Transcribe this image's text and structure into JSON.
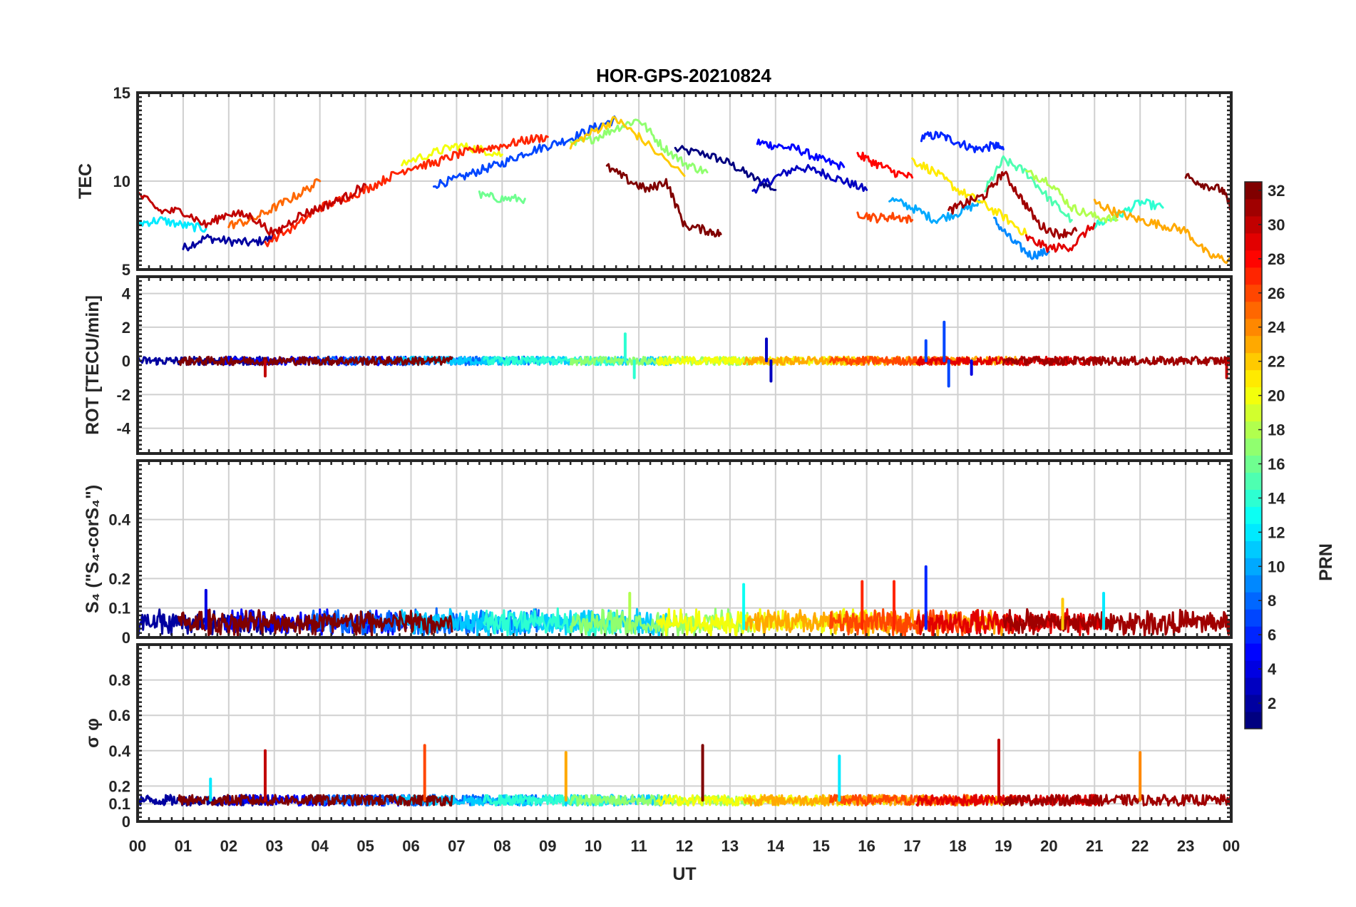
{
  "chart_data": {
    "title": "HOR-GPS-20210824",
    "type": "line",
    "xlabel": "UT",
    "x_ticks": [
      "00",
      "01",
      "02",
      "03",
      "04",
      "05",
      "06",
      "07",
      "08",
      "09",
      "10",
      "11",
      "12",
      "13",
      "14",
      "15",
      "16",
      "17",
      "18",
      "19",
      "20",
      "21",
      "22",
      "23",
      "00"
    ],
    "xlim": [
      0,
      24
    ],
    "grid": true,
    "panels": [
      {
        "ylabel": "TEC",
        "ylim": [
          5,
          15
        ],
        "y_ticks": [
          {
            "v": 5,
            "t": "5"
          },
          {
            "v": 10,
            "t": "10"
          },
          {
            "v": 15,
            "t": "15"
          }
        ],
        "description_of_series": "vertical TEC per PRN",
        "series": [
          {
            "prn": 1,
            "x": [
              11.8,
              12.5,
              13.0,
              13.5,
              14.0
            ],
            "y": [
              11.8,
              11.5,
              11.0,
              10.2,
              9.5
            ]
          },
          {
            "prn": 2,
            "x": [
              1.0,
              1.5,
              2.0,
              2.5,
              3.0
            ],
            "y": [
              6.2,
              6.8,
              6.6,
              6.5,
              6.8
            ]
          },
          {
            "prn": 3,
            "x": [
              13.5,
              14.0,
              14.5,
              15.0,
              15.5,
              16.0
            ],
            "y": [
              9.5,
              10.2,
              10.8,
              10.5,
              10.0,
              9.5
            ]
          },
          {
            "prn": 5,
            "x": [
              13.6,
              14.0,
              14.5,
              15.0,
              15.5
            ],
            "y": [
              12.2,
              12.0,
              11.8,
              11.2,
              10.8
            ]
          },
          {
            "prn": 6,
            "x": [
              17.2,
              17.6,
              18.0,
              18.4,
              18.8,
              19.0
            ],
            "y": [
              12.5,
              12.6,
              12.2,
              11.8,
              12.0,
              11.8
            ]
          },
          {
            "prn": 7,
            "x": [
              6.5,
              7.0,
              7.5,
              8.0,
              8.5,
              9.0,
              9.5,
              10.0,
              10.5
            ],
            "y": [
              9.8,
              10.1,
              10.6,
              11.0,
              11.6,
              12.0,
              12.4,
              13.0,
              13.5
            ]
          },
          {
            "prn": 9,
            "x": [
              18.8,
              19.2,
              19.6,
              20.0
            ],
            "y": [
              7.8,
              6.6,
              5.8,
              6.0
            ]
          },
          {
            "prn": 10,
            "x": [
              16.5,
              17.0,
              17.5,
              18.0,
              18.5
            ],
            "y": [
              9.0,
              8.5,
              7.8,
              8.2,
              8.8
            ]
          },
          {
            "prn": 12,
            "x": [
              0.0,
              0.5,
              1.0,
              1.5
            ],
            "y": [
              7.6,
              7.8,
              7.5,
              7.3
            ]
          },
          {
            "prn": 14,
            "x": [
              21.0,
              21.5,
              22.0,
              22.5
            ],
            "y": [
              7.5,
              8.0,
              8.8,
              8.5
            ]
          },
          {
            "prn": 15,
            "x": [
              18.6,
              19.0,
              19.5,
              20.0,
              20.5
            ],
            "y": [
              9.5,
              11.2,
              10.5,
              9.0,
              7.8
            ]
          },
          {
            "prn": 16,
            "x": [
              7.5,
              8.0,
              8.5
            ],
            "y": [
              9.2,
              9.0,
              9.0
            ]
          },
          {
            "prn": 17,
            "x": [
              9.5,
              10.0,
              10.5,
              11.0,
              11.5,
              12.0,
              12.5
            ],
            "y": [
              12.0,
              12.4,
              13.0,
              13.5,
              12.0,
              11.0,
              10.5
            ]
          },
          {
            "prn": 18,
            "x": [
              19.5,
              20.0,
              20.5,
              21.0,
              21.5
            ],
            "y": [
              10.5,
              10.0,
              8.5,
              8.0,
              7.8
            ]
          },
          {
            "prn": 20,
            "x": [
              5.8,
              6.5,
              7.0,
              7.5,
              8.0
            ],
            "y": [
              11.0,
              11.6,
              12.0,
              11.8,
              11.5
            ]
          },
          {
            "prn": 21,
            "x": [
              17.0,
              17.5,
              18.0,
              18.5,
              19.0,
              19.5
            ],
            "y": [
              11.2,
              10.5,
              9.5,
              8.8,
              8.0,
              7.0
            ]
          },
          {
            "prn": 22,
            "x": [
              9.5,
              10.0,
              10.5,
              11.0,
              12.0
            ],
            "y": [
              12.0,
              12.8,
              13.5,
              12.5,
              10.3
            ]
          },
          {
            "prn": 23,
            "x": [
              21.0,
              21.5,
              22.0,
              22.5,
              23.0,
              23.5,
              24.0
            ],
            "y": [
              8.8,
              8.2,
              7.8,
              7.5,
              7.2,
              5.8,
              5.5
            ]
          },
          {
            "prn": 25,
            "x": [
              2.0,
              2.5,
              3.0,
              3.5,
              4.0
            ],
            "y": [
              7.5,
              7.8,
              8.5,
              9.2,
              10.0
            ]
          },
          {
            "prn": 26,
            "x": [
              15.8,
              16.2,
              16.6,
              17.0
            ],
            "y": [
              8.2,
              7.9,
              8.0,
              7.8
            ]
          },
          {
            "prn": 27,
            "x": [
              2.8,
              3.5,
              4.0,
              4.5,
              5.0,
              5.5,
              6.0,
              6.5,
              7.0,
              7.5,
              8.0,
              8.5,
              9.0
            ],
            "y": [
              6.5,
              7.5,
              8.5,
              9.0,
              9.5,
              10.2,
              10.8,
              11.0,
              11.5,
              11.8,
              12.0,
              12.3,
              12.5
            ]
          },
          {
            "prn": 28,
            "x": [
              15.8,
              16.2,
              16.6,
              17.0
            ],
            "y": [
              11.5,
              11.0,
              10.5,
              10.2
            ]
          },
          {
            "prn": 29,
            "x": [
              19.5,
              20.0,
              20.5,
              21.0
            ],
            "y": [
              6.8,
              6.2,
              6.3,
              7.6
            ]
          },
          {
            "prn": 30,
            "x": [
              0.0,
              0.5,
              1.0,
              1.5,
              2.0,
              2.5,
              3.0,
              3.5,
              4.0,
              4.5,
              5.0
            ],
            "y": [
              9.3,
              8.3,
              8.3,
              7.5,
              8.2,
              8.0,
              7.0,
              8.0,
              8.5,
              9.0,
              9.8
            ]
          },
          {
            "prn": 31,
            "x": [
              17.8,
              18.2,
              18.6,
              19.0,
              19.4,
              19.8,
              20.2,
              20.6
            ],
            "y": [
              8.3,
              8.8,
              9.2,
              10.5,
              9.0,
              7.5,
              7.0,
              7.2
            ]
          },
          {
            "prn": 32,
            "x": [
              10.3,
              10.8,
              11.2,
              11.6,
              12.0,
              12.5,
              12.8
            ],
            "y": [
              10.8,
              10.0,
              9.5,
              10.0,
              7.5,
              7.2,
              7.0
            ]
          },
          {
            "prn": 32,
            "x": [
              23.0,
              23.4,
              23.8,
              24.0
            ],
            "y": [
              10.3,
              9.8,
              9.5,
              8.5
            ]
          }
        ]
      },
      {
        "ylabel": "ROT [TECU/min]",
        "ylim": [
          -5.5,
          5.0
        ],
        "y_ticks": [
          {
            "v": -4,
            "t": "-4"
          },
          {
            "v": -2,
            "t": "-2"
          },
          {
            "v": 0,
            "t": "0"
          },
          {
            "v": 2,
            "t": "2"
          },
          {
            "v": 4,
            "t": "4"
          }
        ],
        "description_of_series": "rate of TEC, mostly within ±0.5, spikes to about ±2",
        "spikes": [
          {
            "prn": 3,
            "x": 13.8,
            "y": 1.3
          },
          {
            "prn": 3,
            "x": 13.9,
            "y": -1.2
          },
          {
            "prn": 14,
            "x": 10.7,
            "y": 1.6
          },
          {
            "prn": 14,
            "x": 10.9,
            "y": -1.0
          },
          {
            "prn": 7,
            "x": 17.3,
            "y": 1.2
          },
          {
            "prn": 7,
            "x": 17.7,
            "y": 2.3
          },
          {
            "prn": 7,
            "x": 17.8,
            "y": -1.5
          },
          {
            "prn": 4,
            "x": 18.3,
            "y": -0.8
          },
          {
            "prn": 30,
            "x": 2.8,
            "y": -0.9
          },
          {
            "prn": 30,
            "x": 23.9,
            "y": -1.0
          }
        ]
      },
      {
        "ylabel": "S₄ (\"S₄-corS₄\")",
        "ylim": [
          0,
          0.6
        ],
        "y_ticks": [
          {
            "v": 0,
            "t": "0"
          },
          {
            "v": 0.1,
            "t": "0.1"
          },
          {
            "v": 0.2,
            "t": "0.2"
          },
          {
            "v": 0.4,
            "t": "0.4"
          }
        ],
        "description_of_series": "amplitude scintillation index, mostly below 0.1",
        "peaks": [
          {
            "prn": 4,
            "x": 1.5,
            "y": 0.16
          },
          {
            "prn": 13,
            "x": 13.3,
            "y": 0.18
          },
          {
            "prn": 27,
            "x": 15.9,
            "y": 0.19
          },
          {
            "prn": 27,
            "x": 16.6,
            "y": 0.19
          },
          {
            "prn": 6,
            "x": 17.3,
            "y": 0.24
          },
          {
            "prn": 18,
            "x": 10.8,
            "y": 0.15
          },
          {
            "prn": 12,
            "x": 21.2,
            "y": 0.15
          },
          {
            "prn": 22,
            "x": 20.3,
            "y": 0.13
          }
        ]
      },
      {
        "ylabel": "σ φ",
        "ylim": [
          0,
          1.0
        ],
        "y_ticks": [
          {
            "v": 0,
            "t": "0"
          },
          {
            "v": 0.1,
            "t": "0.1"
          },
          {
            "v": 0.2,
            "t": "0.2"
          },
          {
            "v": 0.4,
            "t": "0.4"
          },
          {
            "v": 0.6,
            "t": "0.6"
          },
          {
            "v": 0.8,
            "t": "0.8"
          }
        ],
        "description_of_series": "phase scintillation index, baseline about 0.1",
        "peaks": [
          {
            "prn": 30,
            "x": 2.8,
            "y": 0.4
          },
          {
            "prn": 26,
            "x": 6.3,
            "y": 0.43
          },
          {
            "prn": 23,
            "x": 9.4,
            "y": 0.39
          },
          {
            "prn": 32,
            "x": 12.4,
            "y": 0.43
          },
          {
            "prn": 12,
            "x": 15.4,
            "y": 0.37
          },
          {
            "prn": 30,
            "x": 18.9,
            "y": 0.46
          },
          {
            "prn": 24,
            "x": 22.0,
            "y": 0.39
          },
          {
            "prn": 12,
            "x": 1.6,
            "y": 0.24
          }
        ]
      }
    ],
    "colorbar": {
      "label": "PRN",
      "colormap": "jet",
      "range": [
        1,
        32
      ],
      "ticks": [
        "2",
        "4",
        "6",
        "8",
        "10",
        "12",
        "14",
        "16",
        "18",
        "20",
        "22",
        "24",
        "26",
        "28",
        "30",
        "32"
      ]
    }
  }
}
